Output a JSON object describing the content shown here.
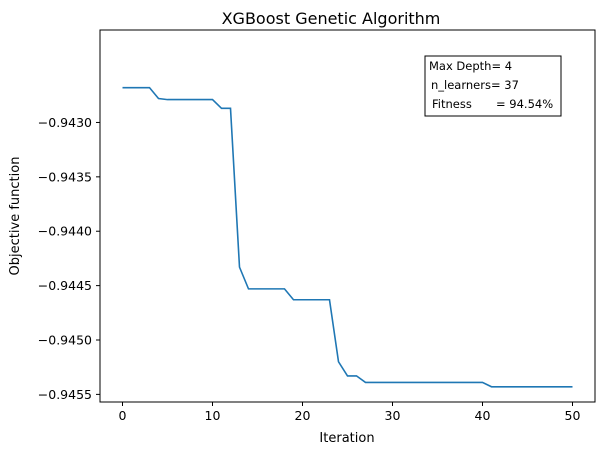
{
  "chart_data": {
    "type": "line",
    "title": "XGBoost Genetic Algorithm",
    "xlabel": "Iteration",
    "ylabel": "Objective function",
    "xlim": [
      -2.5,
      52.5
    ],
    "ylim": [
      -0.94557,
      -0.94215
    ],
    "xticks": [
      0,
      10,
      20,
      30,
      40,
      50
    ],
    "xtick_labels": [
      "0",
      "10",
      "20",
      "30",
      "40",
      "50"
    ],
    "yticks": [
      -0.943,
      -0.9435,
      -0.944,
      -0.9445,
      -0.945,
      -0.9455
    ],
    "ytick_labels": [
      "−0.9430",
      "−0.9435",
      "−0.9440",
      "−0.9445",
      "−0.9450",
      "−0.9455"
    ],
    "grid": false,
    "line_color": "#1f77b4",
    "series": [
      {
        "x": [
          0,
          1,
          2,
          3,
          4,
          5,
          6,
          7,
          8,
          9,
          10,
          11,
          12,
          13,
          14,
          15,
          16,
          17,
          18,
          19,
          20,
          21,
          22,
          23,
          24,
          25,
          26,
          27,
          28,
          29,
          30,
          31,
          32,
          33,
          34,
          35,
          36,
          37,
          38,
          39,
          40,
          41,
          42,
          43,
          44,
          45,
          46,
          47,
          48,
          49,
          50
        ],
        "y": [
          -0.94268,
          -0.94268,
          -0.94268,
          -0.94268,
          -0.94278,
          -0.94279,
          -0.94279,
          -0.94279,
          -0.94279,
          -0.94279,
          -0.94279,
          -0.94287,
          -0.94287,
          -0.94433,
          -0.94453,
          -0.94453,
          -0.94453,
          -0.94453,
          -0.94453,
          -0.94463,
          -0.94463,
          -0.94463,
          -0.94463,
          -0.94463,
          -0.9452,
          -0.94533,
          -0.94533,
          -0.94539,
          -0.94539,
          -0.94539,
          -0.94539,
          -0.94539,
          -0.94539,
          -0.94539,
          -0.94539,
          -0.94539,
          -0.94539,
          -0.94539,
          -0.94539,
          -0.94539,
          -0.94539,
          -0.94543,
          -0.94543,
          -0.94543,
          -0.94543,
          -0.94543,
          -0.94543,
          -0.94543,
          -0.94543,
          -0.94543,
          -0.94543
        ]
      }
    ],
    "annotation": {
      "lines": [
        {
          "label": "Max Depth",
          "sep": "= ",
          "value": "4"
        },
        {
          "label": "n_learners",
          "sep": "= ",
          "value": "37"
        },
        {
          "label": "Fitness",
          "sep": "= ",
          "value": "94.54%"
        }
      ],
      "placement": "top-right"
    }
  }
}
